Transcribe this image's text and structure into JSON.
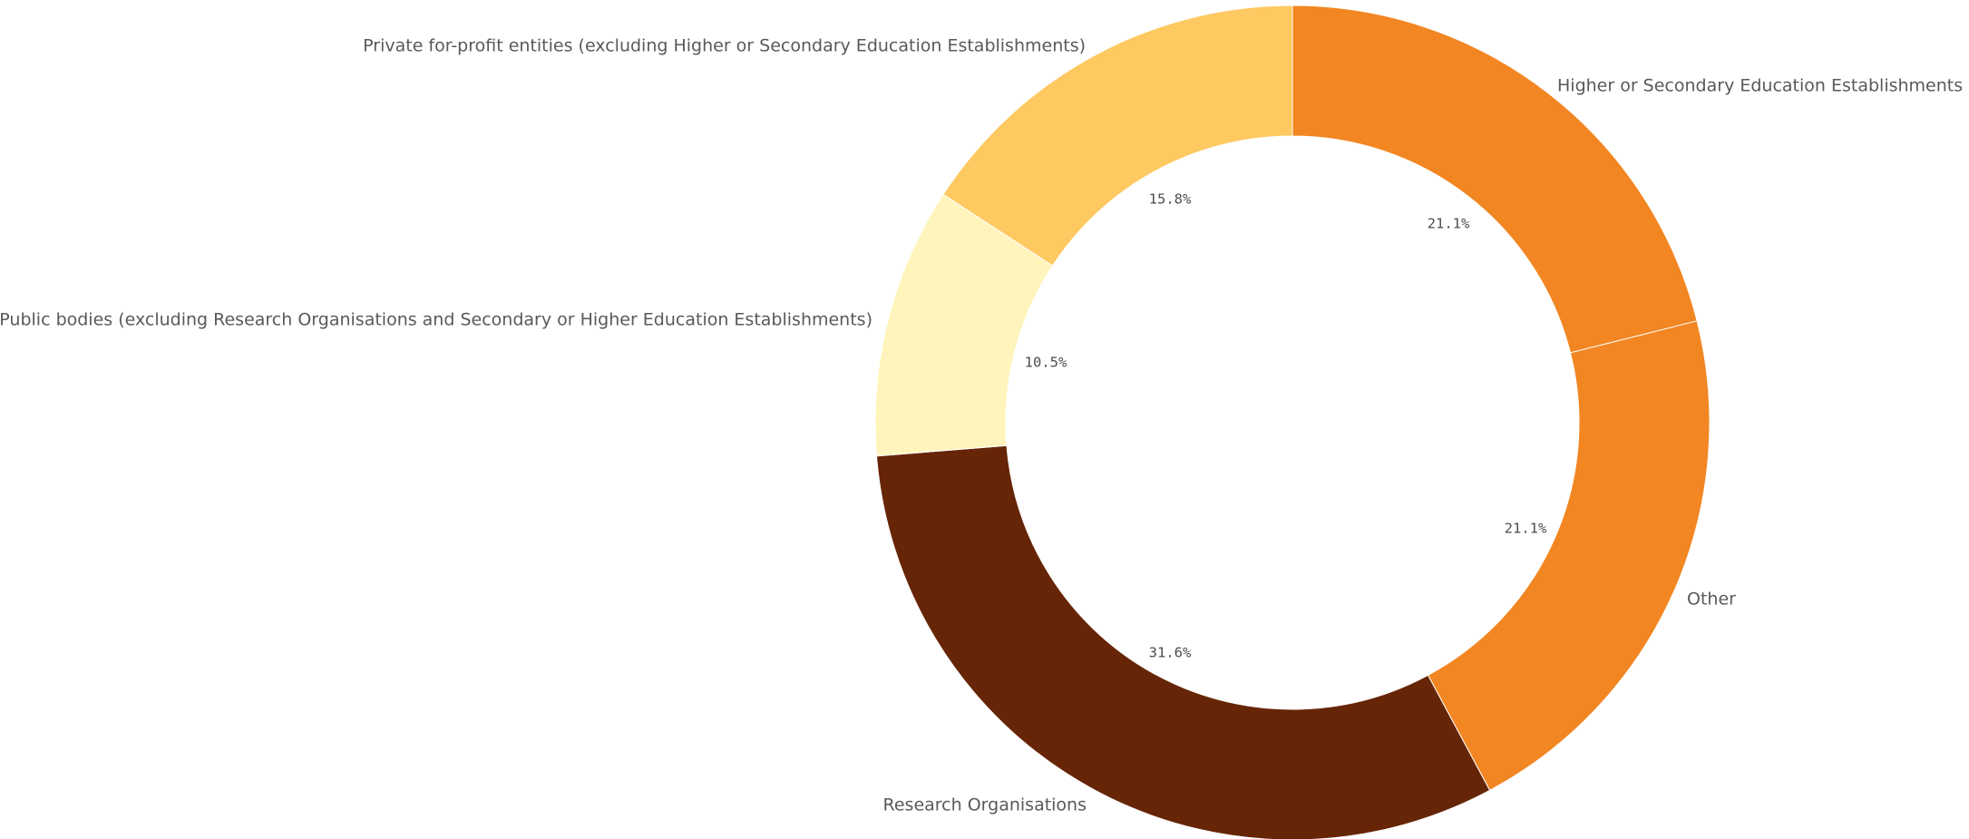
{
  "chart_data": {
    "type": "pie",
    "variant": "donut",
    "title": "",
    "slices": [
      {
        "label": "Higher or Secondary Education Establishments",
        "value": 21.1,
        "value_label": "21.1%",
        "color": "#f28622"
      },
      {
        "label": "Other",
        "value": 21.1,
        "value_label": "21.1%",
        "color": "#f28622"
      },
      {
        "label": "Research Organisations",
        "value": 31.6,
        "value_label": "31.6%",
        "color": "#662506"
      },
      {
        "label": "Public bodies (excluding Research Organisations and Secondary or Higher Education Establishments)",
        "value": 10.5,
        "value_label": "10.5%",
        "color": "#fff5bc"
      },
      {
        "label": "Private for-profit entities (excluding Higher or Secondary Education Establishments)",
        "value": 15.8,
        "value_label": "15.8%",
        "color": "#fec961"
      }
    ],
    "start_angle": "top",
    "direction": "clockwise",
    "legend": "none"
  }
}
